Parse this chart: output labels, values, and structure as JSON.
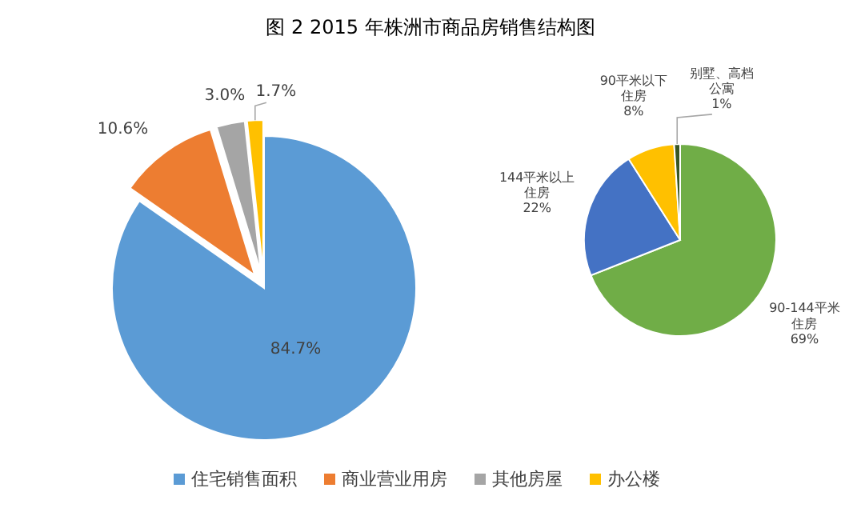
{
  "chart_data": [
    {
      "type": "pie",
      "title": "图 2  2015 年株洲市商品房销售结构图",
      "categories": [
        "住宅销售面积",
        "商业营业用房",
        "其他房屋",
        "办公楼"
      ],
      "values": [
        84.7,
        10.6,
        3.0,
        1.7
      ],
      "colors": [
        "#5b9bd5",
        "#ed7d31",
        "#a5a5a5",
        "#ffc000"
      ],
      "value_labels": [
        "84.7%",
        "10.6%",
        "3.0%",
        "1.7%"
      ],
      "legend": "bottom"
    },
    {
      "type": "pie",
      "categories": [
        "90-144平米住房",
        "144平米以上住房",
        "90平米以下住房",
        "别墅、高档公寓"
      ],
      "values": [
        69,
        22,
        8,
        1
      ],
      "colors": [
        "#70ad47",
        "#4472c4",
        "#ffc000",
        "#375623"
      ],
      "value_labels": [
        "69%",
        "22%",
        "8%",
        "1%"
      ]
    }
  ]
}
